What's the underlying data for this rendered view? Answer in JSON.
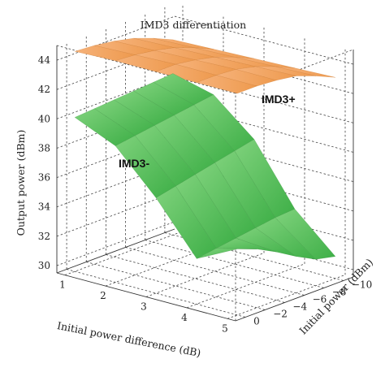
{
  "chart_data": {
    "type": "surface3d",
    "title": "IMD3 differentiation",
    "xlabel": "Initial power difference (dB)",
    "ylabel": "Initial power (dBm)",
    "zlabel": "Output power (dBm)",
    "x_ticks": [
      "1",
      "2",
      "3",
      "4",
      "5"
    ],
    "y_ticks": [
      "−10",
      "−8",
      "−6",
      "−4",
      "−2",
      "0"
    ],
    "z_ticks": [
      "30",
      "32",
      "34",
      "36",
      "38",
      "40",
      "42",
      "44"
    ],
    "xlim": [
      0.8,
      5.2
    ],
    "ylim": [
      -11,
      1
    ],
    "zlim": [
      29.5,
      45
    ],
    "grid": true,
    "series": [
      {
        "name": "IMD3+",
        "color": "#f0a060",
        "surface": [
          [
            42.8,
            43.4,
            43.9,
            44.2,
            44.4,
            44.5
          ],
          [
            42.9,
            43.5,
            44.0,
            44.3,
            44.5,
            44.6
          ],
          [
            43.0,
            43.6,
            44.1,
            44.4,
            44.6,
            44.6
          ],
          [
            43.1,
            43.7,
            44.2,
            44.5,
            44.6,
            44.6
          ],
          [
            43.2,
            43.8,
            44.3,
            44.5,
            44.6,
            44.6
          ]
        ]
      },
      {
        "name": "IMD3-",
        "color": "#5cbf5a",
        "surface": [
          [
            40.5,
            40.4,
            40.3,
            40.2,
            40.1,
            40.0
          ],
          [
            39.8,
            39.6,
            39.4,
            39.2,
            39.0,
            38.8
          ],
          [
            37.5,
            37.2,
            36.9,
            36.6,
            36.3,
            36.0
          ],
          [
            33.5,
            33.4,
            33.2,
            33.0,
            32.8,
            32.6
          ],
          [
            31.0,
            31.3,
            32.0,
            32.8,
            33.5,
            34.0
          ]
        ]
      }
    ]
  }
}
